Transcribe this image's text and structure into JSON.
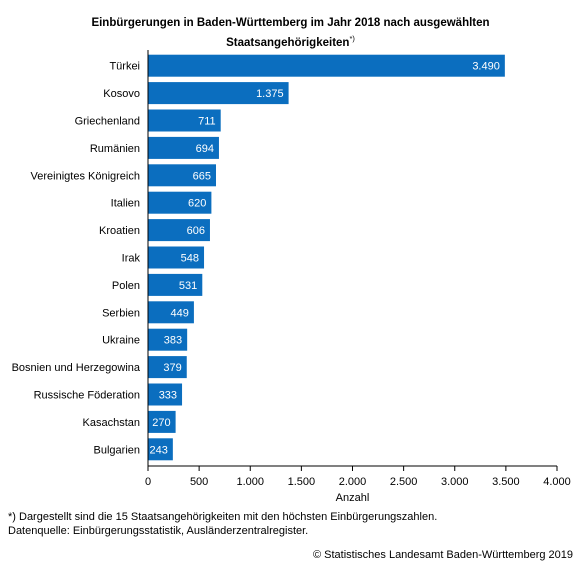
{
  "chart_data": {
    "type": "bar",
    "orientation": "horizontal",
    "title": "Einbürgerungen in Baden-Württemberg im Jahr 2018 nach ausgewählten",
    "title_line2": "Staatsangehörigkeiten",
    "title_marker": "*)",
    "categories": [
      "Türkei",
      "Kosovo",
      "Griechenland",
      "Rumänien",
      "Vereinigtes Königreich",
      "Italien",
      "Kroatien",
      "Irak",
      "Polen",
      "Serbien",
      "Ukraine",
      "Bosnien und Herzegowina",
      "Russische Föderation",
      "Kasachstan",
      "Bulgarien"
    ],
    "values": [
      3490,
      1375,
      711,
      694,
      665,
      620,
      606,
      548,
      531,
      449,
      383,
      379,
      333,
      270,
      243
    ],
    "value_labels": [
      "3.490",
      "1.375",
      "711",
      "694",
      "665",
      "620",
      "606",
      "548",
      "531",
      "449",
      "383",
      "379",
      "333",
      "270",
      "243"
    ],
    "xlabel": "Anzahl",
    "ylabel": "",
    "xlim": [
      0,
      4000
    ],
    "x_ticks": [
      0,
      500,
      1000,
      1500,
      2000,
      2500,
      3000,
      3500,
      4000
    ],
    "x_tick_labels": [
      "0",
      "500",
      "1.000",
      "1.500",
      "2.000",
      "2.500",
      "3.000",
      "3.500",
      "4.000"
    ],
    "grid": false,
    "bar_color": "#0b6ebf",
    "label_color": "#ffffff"
  },
  "footnote": {
    "line1": "*) Dargestellt sind die 15 Staatsangehörigkeiten mit den höchsten Einbürgerungszahlen.",
    "line2": "Datenquelle: Einbürgerungsstatistik, Ausländerzentralregister."
  },
  "source": "© Statistisches Landesamt Baden-Württemberg 2019"
}
